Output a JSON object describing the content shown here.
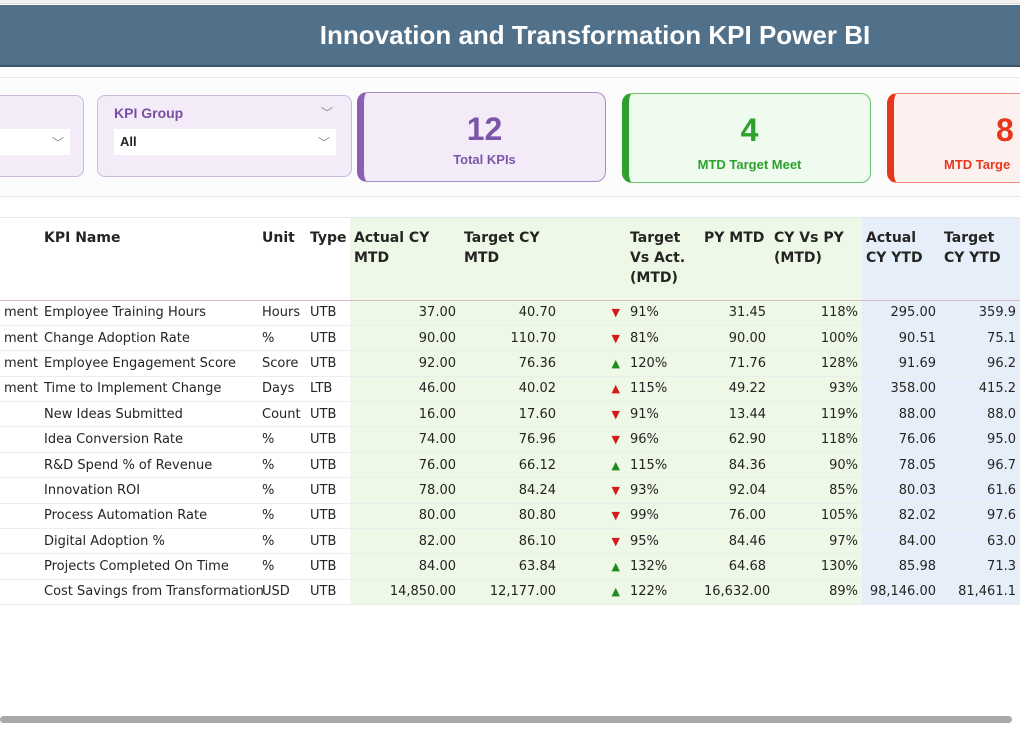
{
  "title": "Innovation and Transformation KPI Power BI",
  "slicers": [
    {
      "label": "",
      "value": ""
    },
    {
      "label": "KPI Group",
      "value": "All"
    }
  ],
  "cards": [
    {
      "value": "12",
      "caption": "Total KPIs",
      "color": "#7b56a8"
    },
    {
      "value": "4",
      "caption": "MTD Target Meet",
      "color": "#2ea02e"
    },
    {
      "value": "8",
      "caption": "MTD Targe",
      "color": "#e8361d"
    }
  ],
  "table": {
    "headers": [
      "",
      "KPI Name",
      "Unit",
      "Type",
      "Actual CY MTD",
      "Target CY MTD",
      "",
      "Target Vs Act. (MTD)",
      "PY MTD",
      "CY Vs PY (MTD)",
      "Actual CY YTD",
      "Target CY YTD"
    ],
    "rows": [
      [
        "ment",
        "Employee Training Hours",
        "Hours",
        "UTB",
        "37.00",
        "40.70",
        "down-red",
        "91%",
        "31.45",
        "118%",
        "295.00",
        "359.9"
      ],
      [
        "ment",
        "Change Adoption Rate",
        "%",
        "UTB",
        "90.00",
        "110.70",
        "down-red",
        "81%",
        "90.00",
        "100%",
        "90.51",
        "75.1"
      ],
      [
        "ment",
        "Employee Engagement Score",
        "Score",
        "UTB",
        "92.00",
        "76.36",
        "up-green",
        "120%",
        "71.76",
        "128%",
        "91.69",
        "96.2"
      ],
      [
        "ment",
        "Time to Implement Change",
        "Days",
        "LTB",
        "46.00",
        "40.02",
        "up-red",
        "115%",
        "49.22",
        "93%",
        "358.00",
        "415.2"
      ],
      [
        "",
        "New Ideas Submitted",
        "Count",
        "UTB",
        "16.00",
        "17.60",
        "down-red",
        "91%",
        "13.44",
        "119%",
        "88.00",
        "88.0"
      ],
      [
        "",
        "Idea Conversion Rate",
        "%",
        "UTB",
        "74.00",
        "76.96",
        "down-red",
        "96%",
        "62.90",
        "118%",
        "76.06",
        "95.0"
      ],
      [
        "",
        "R&D Spend % of Revenue",
        "%",
        "UTB",
        "76.00",
        "66.12",
        "up-green",
        "115%",
        "84.36",
        "90%",
        "78.05",
        "96.7"
      ],
      [
        "",
        "Innovation ROI",
        "%",
        "UTB",
        "78.00",
        "84.24",
        "down-red",
        "93%",
        "92.04",
        "85%",
        "80.03",
        "61.6"
      ],
      [
        "",
        "Process Automation Rate",
        "%",
        "UTB",
        "80.00",
        "80.80",
        "down-red",
        "99%",
        "76.00",
        "105%",
        "82.02",
        "97.6"
      ],
      [
        "",
        "Digital Adoption %",
        "%",
        "UTB",
        "82.00",
        "86.10",
        "down-red",
        "95%",
        "84.46",
        "97%",
        "84.00",
        "63.0"
      ],
      [
        "",
        "Projects Completed On Time",
        "%",
        "UTB",
        "84.00",
        "63.84",
        "up-green",
        "132%",
        "64.68",
        "130%",
        "85.98",
        "71.3"
      ],
      [
        "",
        "Cost Savings from Transformation",
        "USD",
        "UTB",
        "14,850.00",
        "12,177.00",
        "up-green",
        "122%",
        "16,632.00",
        "89%",
        "98,146.00",
        "81,461.1"
      ]
    ]
  },
  "colors": {
    "header_bg": "#51708a",
    "mtd_bg": "#eef8e6",
    "ytd_bg": "#e6eff9",
    "up": "#1e8c1e",
    "down": "#d41b1b"
  }
}
